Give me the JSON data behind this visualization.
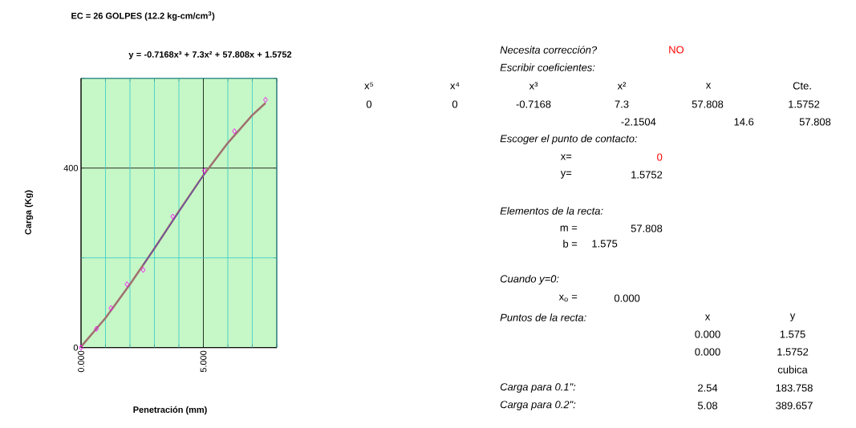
{
  "chart_data": [
    {
      "type": "scatter",
      "title": "EC = 26 GOLPES (12.2 kg-cm/cm$^{3}$)",
      "xlabel": "Penetración (mm)",
      "ylabel": "Carga (Kg)",
      "annotations": [
        "y = -0.7168x³ + 7.3x² + 57.808x + 1.5752"
      ],
      "xlim": [
        0,
        8
      ],
      "ylim": [
        0,
        600
      ],
      "xticks": [
        {
          "value": 0,
          "label": "0.000"
        },
        {
          "value": 1,
          "label": null
        },
        {
          "value": 2,
          "label": null
        },
        {
          "value": 3,
          "label": null
        },
        {
          "value": 4,
          "label": null
        },
        {
          "value": 5,
          "label": "5.000"
        },
        {
          "value": 6,
          "label": null
        },
        {
          "value": 7,
          "label": null
        },
        {
          "value": 8,
          "label": null
        }
      ],
      "yticks": [
        0,
        {
          "value": 200,
          "label": null
        },
        400,
        {
          "value": 600,
          "label": null
        }
      ],
      "grid": true,
      "series": [
        {
          "type": "scatter",
          "color": "#ff00ff",
          "marker": "diamond",
          "x": [
            0,
            0.63,
            1.22,
            1.88,
            2.54,
            3.75,
            5.04,
            6.27,
            7.54
          ],
          "values": [
            0,
            42,
            88,
            141,
            173,
            292,
            394,
            482,
            552
          ]
        },
        {
          "type": "line",
          "color": "#a07070",
          "marker": "none",
          "x": [
            0,
            1,
            2,
            3,
            4,
            5,
            6,
            7,
            7.54
          ],
          "values": [
            2,
            66,
            141,
            221,
            304,
            384,
            456,
            518,
            545
          ]
        },
        {
          "type": "line",
          "color": "#3333cc",
          "marker": "none",
          "x": [
            2.54,
            5.08
          ],
          "values": [
            184,
            390
          ]
        }
      ]
    },
    {
      "type": "other",
      "annotations": [
        "Necesita corrección?",
        "NO",
        "Escribir coeficientes:",
        "x⁵",
        "x⁴",
        "x³",
        "x²",
        "x",
        "Cte.",
        "0",
        "0",
        "-0.7168",
        "7.3",
        "57.808",
        "1.5752",
        "-2.1504",
        "14.6",
        "57.808",
        "Escoger el punto de contacto:",
        "x=",
        "0",
        "y=",
        "1.5752",
        "Elementos de la recta:",
        "m =",
        "57.808",
        "b =",
        "1.575",
        "Cuando y=0:",
        "x$_{o}$ =",
        "0.000",
        "Puntos de la recta:",
        "x",
        "y",
        "0.000",
        "1.575",
        "0.000",
        "1.5752",
        "cubica",
        "Carga para 0.1\":",
        "2.54",
        "183.758",
        "Carga para 0.2\":",
        "5.08",
        "389.657"
      ]
    }
  ]
}
